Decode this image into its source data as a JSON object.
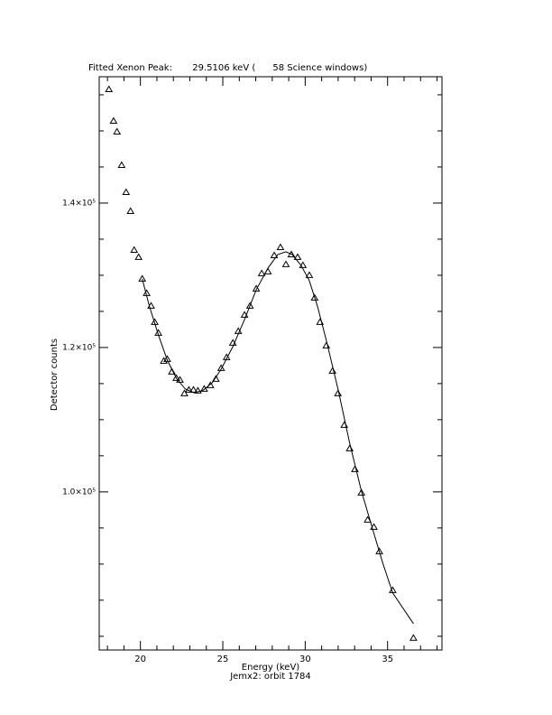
{
  "chart_data": {
    "type": "scatter",
    "title": "Fitted Xenon Peak:       29.5106 keV (      58 Science windows)",
    "x_label": "Energy (keV)",
    "subtitle": "Jemx2: orbit 1784",
    "y_label": "Detector counts",
    "xlim": [
      17.5,
      38.3
    ],
    "ylim": [
      78100,
      157500
    ],
    "xticks": [
      20,
      25,
      30,
      35
    ],
    "xminorticks": [
      18,
      19,
      21,
      22,
      23,
      24,
      26,
      27,
      28,
      29,
      31,
      32,
      33,
      34,
      36,
      37,
      38
    ],
    "yticks": [
      {
        "value": 100000,
        "label": "1.0×10⁵"
      },
      {
        "value": 120000,
        "label": "1.2×10⁵"
      },
      {
        "value": 140000,
        "label": "1.4×10⁵"
      }
    ],
    "yminorticks": [
      80000,
      85000,
      90000,
      95000,
      105000,
      110000,
      115000,
      125000,
      130000,
      135000,
      145000,
      150000,
      155000
    ],
    "series": [
      {
        "style": "triangle",
        "color": "#000000",
        "x": [
          18.09,
          18.37,
          18.58,
          18.86,
          19.13,
          19.4,
          19.62,
          19.89,
          20.11,
          20.38,
          20.65,
          20.87,
          21.09,
          21.42,
          21.63,
          21.91,
          22.18,
          22.4,
          22.67,
          22.94,
          23.22,
          23.49,
          23.87,
          24.25,
          24.58,
          24.9,
          25.23,
          25.61,
          25.94,
          26.32,
          26.65,
          27.03,
          27.36,
          27.74,
          28.12,
          28.5,
          28.83,
          29.16,
          29.54,
          29.86,
          30.25,
          30.57,
          30.9,
          31.28,
          31.66,
          31.99,
          32.37,
          32.7,
          33.02,
          33.41,
          33.79,
          34.17,
          34.5,
          35.31,
          36.57
        ],
        "values": [
          155750,
          151375,
          149875,
          145250,
          141500,
          138875,
          133500,
          132500,
          129500,
          127500,
          125750,
          123500,
          122000,
          118125,
          118375,
          116625,
          115750,
          115500,
          113625,
          114125,
          114125,
          114000,
          114250,
          114750,
          115625,
          117125,
          118625,
          120625,
          122250,
          124500,
          125750,
          128125,
          130250,
          130500,
          132750,
          133875,
          131500,
          132875,
          132500,
          131375,
          130000,
          126875,
          123500,
          120250,
          116750,
          113625,
          109250,
          106000,
          103125,
          99875,
          96125,
          95125,
          91750,
          86375,
          79750
        ]
      },
      {
        "style": "line",
        "color": "#000000",
        "x": [
          20.11,
          20.54,
          21.09,
          21.63,
          22.18,
          22.72,
          23.22,
          23.76,
          24.36,
          24.9,
          25.61,
          26.32,
          27.03,
          27.74,
          28.34,
          28.83,
          29.21,
          29.75,
          30.25,
          30.74,
          31.28,
          31.99,
          32.7,
          33.41,
          34.17,
          34.71,
          35.31,
          36.57
        ],
        "values": [
          129500,
          125750,
          121750,
          118250,
          115750,
          114250,
          113750,
          114000,
          115125,
          117000,
          120125,
          123875,
          128000,
          131000,
          132875,
          133250,
          132875,
          131375,
          129250,
          125750,
          121000,
          114250,
          106750,
          100125,
          94250,
          90125,
          86000,
          81750
        ]
      }
    ]
  }
}
